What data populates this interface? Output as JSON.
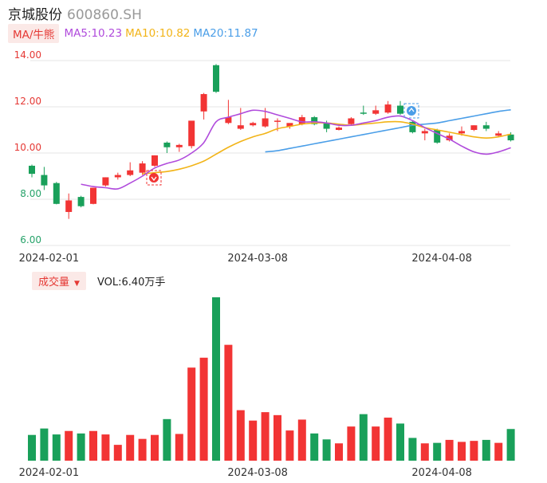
{
  "header": {
    "name": "京城股份",
    "code": "600860.SH"
  },
  "ma_legend": {
    "tag": "MA/牛熊",
    "items": [
      {
        "label": "MA5:10.23",
        "color": "#b04bdc"
      },
      {
        "label": "MA10:10.82",
        "color": "#f2b418"
      },
      {
        "label": "MA20:11.87",
        "color": "#4a9ee8"
      }
    ]
  },
  "volume_legend": {
    "tag": "成交量",
    "text": "VOL:6.40万手"
  },
  "colors": {
    "up": "#f23434",
    "down": "#19a05a",
    "ma5": "#b04bdc",
    "ma10": "#f2b418",
    "ma20": "#4a9ee8"
  },
  "chart_data": {
    "type": "candlestick",
    "ylim": [
      6.0,
      14.0
    ],
    "yticks": [
      "14.00",
      "12.00",
      "10.00",
      "8.00",
      "6.00"
    ],
    "x_labels": [
      {
        "label": "2024-02-01",
        "index": 1
      },
      {
        "label": "2024-03-08",
        "index": 18
      },
      {
        "label": "2024-04-08",
        "index": 33
      }
    ],
    "candles": [
      {
        "o": 9.45,
        "h": 9.5,
        "c": 9.1,
        "l": 8.95
      },
      {
        "o": 9.05,
        "h": 9.4,
        "c": 8.6,
        "l": 8.4
      },
      {
        "o": 8.7,
        "h": 8.75,
        "c": 7.8,
        "l": 7.78
      },
      {
        "o": 7.45,
        "h": 8.25,
        "c": 7.95,
        "l": 7.15
      },
      {
        "o": 8.1,
        "h": 8.15,
        "c": 7.7,
        "l": 7.65
      },
      {
        "o": 7.8,
        "h": 8.5,
        "c": 8.5,
        "l": 7.78
      },
      {
        "o": 8.6,
        "h": 8.95,
        "c": 8.95,
        "l": 8.55
      },
      {
        "o": 8.95,
        "h": 9.15,
        "c": 9.05,
        "l": 8.85
      },
      {
        "o": 9.05,
        "h": 9.6,
        "c": 9.25,
        "l": 9.0
      },
      {
        "o": 9.15,
        "h": 9.65,
        "c": 9.55,
        "l": 9.05
      },
      {
        "o": 9.45,
        "h": 9.9,
        "c": 9.9,
        "l": 9.4
      },
      {
        "o": 10.45,
        "h": 10.5,
        "c": 10.25,
        "l": 10.0
      },
      {
        "o": 10.25,
        "h": 10.4,
        "c": 10.35,
        "l": 10.05
      },
      {
        "o": 10.3,
        "h": 11.35,
        "c": 11.4,
        "l": 10.2
      },
      {
        "o": 11.8,
        "h": 12.6,
        "c": 12.55,
        "l": 11.45
      },
      {
        "o": 13.8,
        "h": 13.85,
        "c": 12.65,
        "l": 12.6
      },
      {
        "o": 11.3,
        "h": 12.3,
        "c": 11.55,
        "l": 11.25
      },
      {
        "o": 11.05,
        "h": 11.95,
        "c": 11.2,
        "l": 11.0
      },
      {
        "o": 11.2,
        "h": 11.35,
        "c": 11.3,
        "l": 11.15
      },
      {
        "o": 11.15,
        "h": 11.95,
        "c": 11.5,
        "l": 11.1
      },
      {
        "o": 11.4,
        "h": 11.5,
        "c": 11.4,
        "l": 10.95
      },
      {
        "o": 11.15,
        "h": 11.25,
        "c": 11.3,
        "l": 11.05
      },
      {
        "o": 11.25,
        "h": 11.65,
        "c": 11.55,
        "l": 11.2
      },
      {
        "o": 11.55,
        "h": 11.6,
        "c": 11.25,
        "l": 11.2
      },
      {
        "o": 11.3,
        "h": 11.4,
        "c": 11.05,
        "l": 10.9
      },
      {
        "o": 11.0,
        "h": 11.15,
        "c": 11.1,
        "l": 10.98
      },
      {
        "o": 11.25,
        "h": 11.55,
        "c": 11.5,
        "l": 11.2
      },
      {
        "o": 11.75,
        "h": 12.05,
        "c": 11.7,
        "l": 11.65
      },
      {
        "o": 11.7,
        "h": 12.05,
        "c": 11.85,
        "l": 11.65
      },
      {
        "o": 11.75,
        "h": 12.25,
        "c": 12.1,
        "l": 11.7
      },
      {
        "o": 12.05,
        "h": 12.25,
        "c": 11.7,
        "l": 11.65
      },
      {
        "o": 11.35,
        "h": 11.4,
        "c": 10.9,
        "l": 10.85
      },
      {
        "o": 10.85,
        "h": 11.05,
        "c": 10.95,
        "l": 10.55
      },
      {
        "o": 11.0,
        "h": 11.05,
        "c": 10.45,
        "l": 10.4
      },
      {
        "o": 10.55,
        "h": 10.85,
        "c": 10.75,
        "l": 10.5
      },
      {
        "o": 10.85,
        "h": 11.15,
        "c": 10.95,
        "l": 10.75
      },
      {
        "o": 11.0,
        "h": 11.2,
        "c": 11.2,
        "l": 10.95
      },
      {
        "o": 11.2,
        "h": 11.35,
        "c": 11.05,
        "l": 10.95
      },
      {
        "o": 10.75,
        "h": 10.95,
        "c": 10.85,
        "l": 10.7
      },
      {
        "o": 10.8,
        "h": 10.9,
        "c": 10.55,
        "l": 10.5
      }
    ],
    "ma5": [
      null,
      null,
      null,
      null,
      8.65,
      8.55,
      8.5,
      8.45,
      8.7,
      9.0,
      9.35,
      9.55,
      9.7,
      10.0,
      10.45,
      11.35,
      11.55,
      11.7,
      11.85,
      11.8,
      11.65,
      11.5,
      11.35,
      11.35,
      11.3,
      11.2,
      11.2,
      11.3,
      11.4,
      11.55,
      11.6,
      11.4,
      11.1,
      10.85,
      10.6,
      10.3,
      10.05,
      9.95,
      10.05,
      10.23
    ],
    "ma10": [
      null,
      null,
      null,
      null,
      null,
      null,
      null,
      null,
      null,
      9.1,
      9.15,
      9.2,
      9.3,
      9.45,
      9.65,
      9.95,
      10.25,
      10.5,
      10.7,
      10.85,
      11.05,
      11.15,
      11.25,
      11.3,
      11.3,
      11.25,
      11.2,
      11.25,
      11.3,
      11.35,
      11.35,
      11.25,
      11.1,
      11.0,
      10.9,
      10.8,
      10.7,
      10.65,
      10.7,
      10.82
    ],
    "ma20": [
      null,
      null,
      null,
      null,
      null,
      null,
      null,
      null,
      null,
      null,
      null,
      null,
      null,
      null,
      null,
      null,
      null,
      null,
      null,
      10.05,
      10.1,
      10.2,
      10.3,
      10.4,
      10.5,
      10.6,
      10.7,
      10.8,
      10.9,
      11.0,
      11.1,
      11.2,
      11.25,
      11.3,
      11.4,
      11.5,
      11.6,
      11.7,
      11.8,
      11.87
    ],
    "volume_unit": "万手",
    "volume": [
      5.2,
      6.5,
      5.3,
      6.0,
      5.5,
      6.0,
      5.3,
      3.2,
      5.2,
      4.4,
      5.2,
      8.4,
      5.4,
      18.8,
      20.8,
      33.0,
      23.4,
      10.2,
      8.1,
      9.8,
      9.2,
      6.1,
      8.3,
      5.5,
      4.3,
      3.5,
      6.9,
      9.4,
      6.9,
      8.7,
      7.5,
      4.6,
      3.5,
      3.6,
      4.2,
      3.8,
      4.0,
      4.2,
      3.6,
      6.4
    ]
  }
}
